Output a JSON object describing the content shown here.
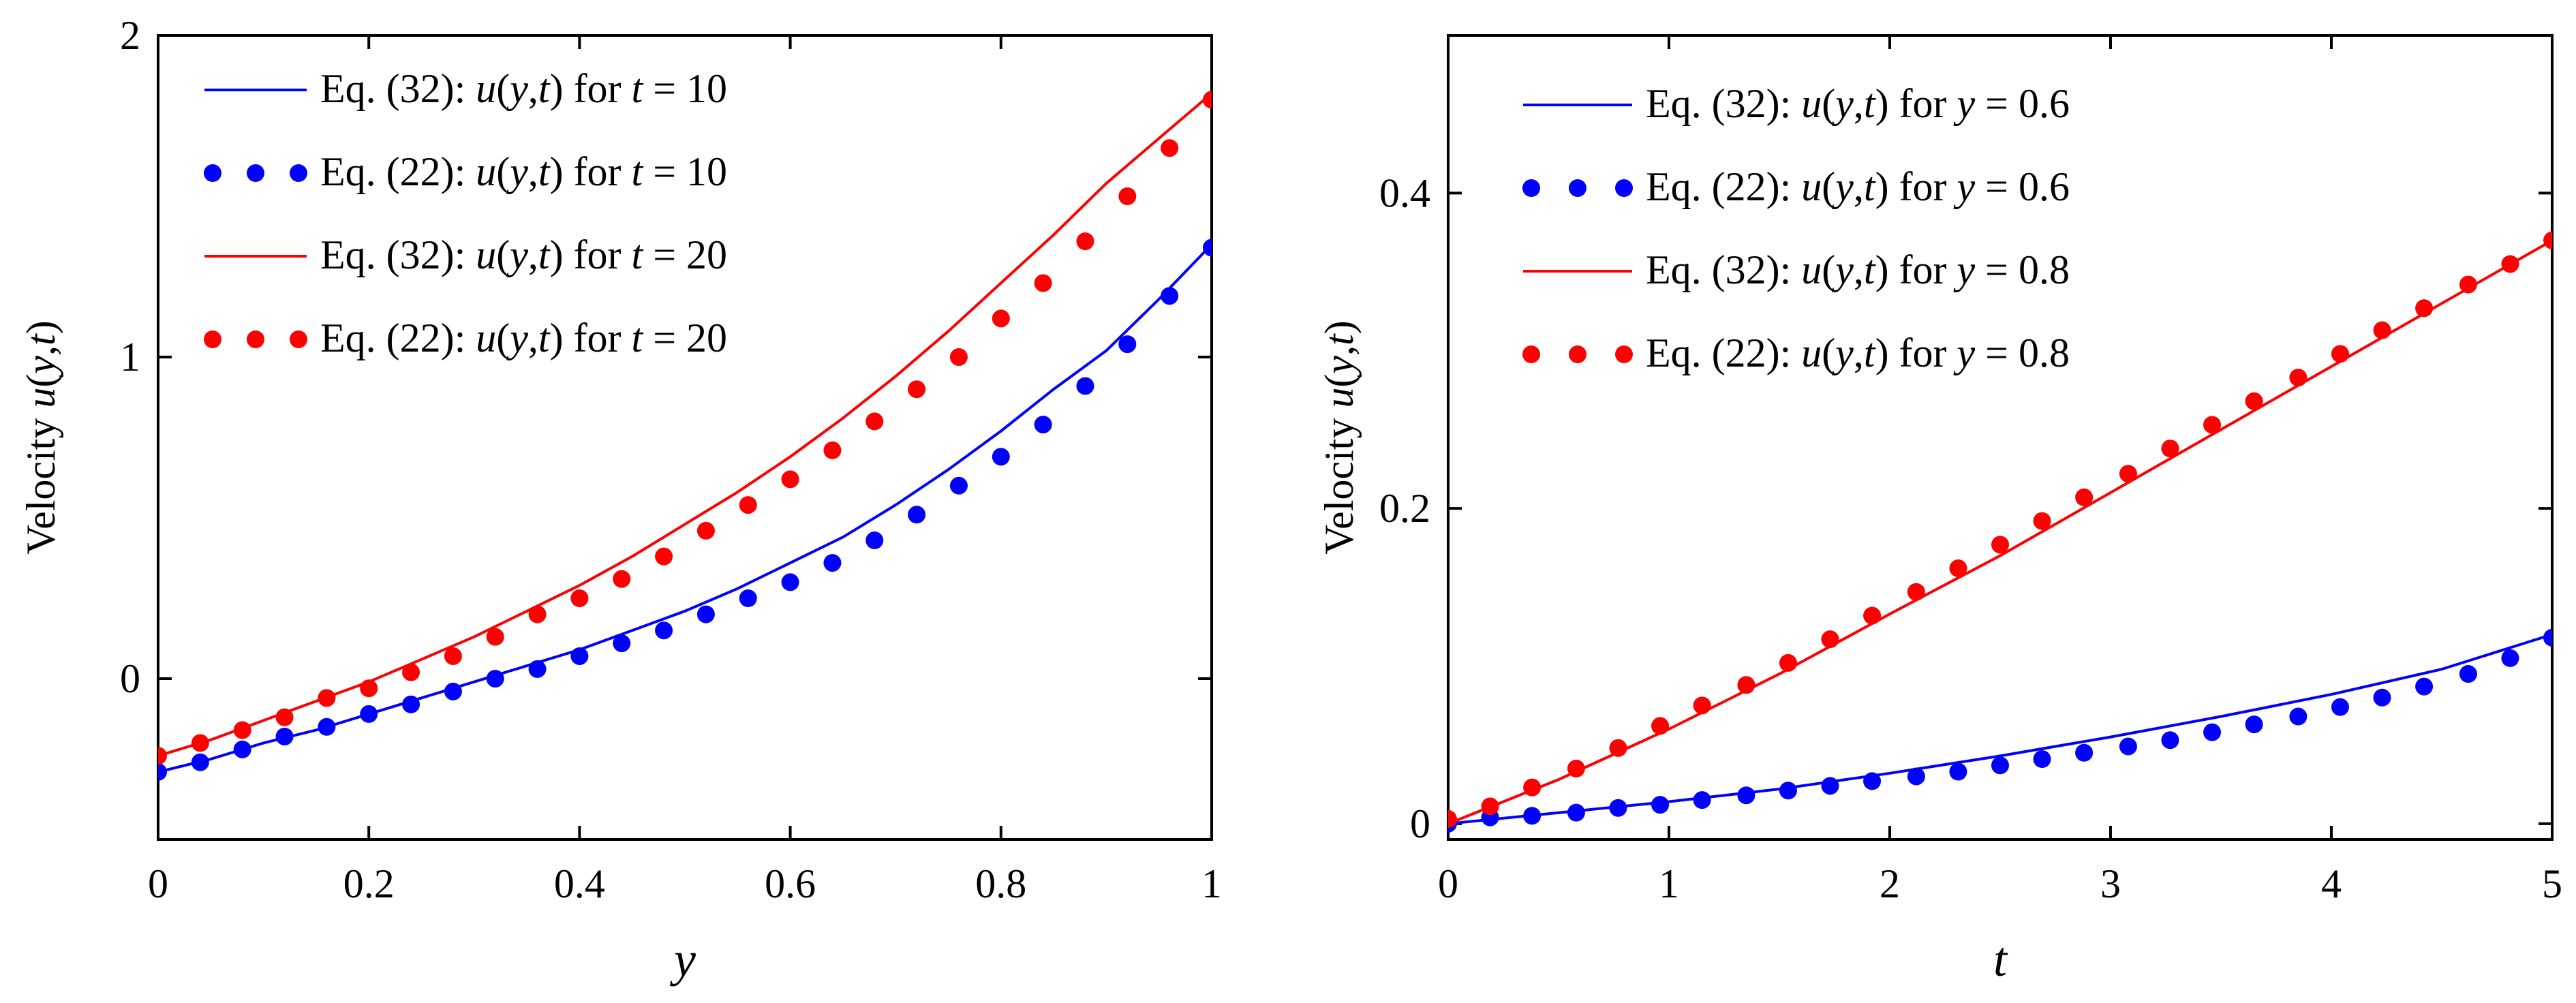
{
  "chart_data": [
    {
      "type": "line",
      "xlabel": "y",
      "ylabel": {
        "prefix": "Velocity ",
        "func": "u",
        "open": "(",
        "var1": "y",
        "comma": ",",
        "var2": "t",
        "close": ")"
      },
      "xlim": [
        0,
        1
      ],
      "ylim": [
        -0.5,
        2
      ],
      "xticks": [
        {
          "v": 0,
          "label": "0"
        },
        {
          "v": 0.2,
          "label": "0.2"
        },
        {
          "v": 0.4,
          "label": "0.4"
        },
        {
          "v": 0.6,
          "label": "0.6"
        },
        {
          "v": 0.8,
          "label": "0.8"
        },
        {
          "v": 1,
          "label": "1"
        }
      ],
      "yticks": [
        {
          "v": 0,
          "label": "0"
        },
        {
          "v": 1,
          "label": "1"
        },
        {
          "v": 2,
          "label": "2"
        }
      ],
      "legend_position": "top-left",
      "series": [
        {
          "key": "eq32_t10",
          "style": "line",
          "color": "#0000ff",
          "legend": {
            "eq": "Eq. (32):",
            "func": "u",
            "open": "(",
            "a": "y",
            "comma": ",",
            "b": "t",
            "close": ")",
            "for": " for ",
            "param": "t",
            "rel": " = ",
            "val": "10"
          },
          "x": [
            0,
            0.05,
            0.1,
            0.15,
            0.2,
            0.25,
            0.3,
            0.35,
            0.4,
            0.45,
            0.5,
            0.55,
            0.6,
            0.65,
            0.7,
            0.75,
            0.8,
            0.85,
            0.9,
            0.95,
            1
          ],
          "y": [
            -0.29,
            -0.25,
            -0.2,
            -0.16,
            -0.11,
            -0.06,
            -0.01,
            0.04,
            0.09,
            0.15,
            0.21,
            0.28,
            0.36,
            0.44,
            0.54,
            0.65,
            0.77,
            0.9,
            1.02,
            1.18,
            1.35
          ]
        },
        {
          "key": "eq22_t10",
          "style": "dots",
          "color": "#0000ff",
          "legend": {
            "eq": "Eq. (22):",
            "func": "u",
            "open": "(",
            "a": "y",
            "comma": ",",
            "b": "t",
            "close": ")",
            "for": " for ",
            "param": "t",
            "rel": " = ",
            "val": "10"
          },
          "x": [
            0,
            0.04,
            0.08,
            0.12,
            0.16,
            0.2,
            0.24,
            0.28,
            0.32,
            0.36,
            0.4,
            0.44,
            0.48,
            0.52,
            0.56,
            0.6,
            0.64,
            0.68,
            0.72,
            0.76,
            0.8,
            0.84,
            0.88,
            0.92,
            0.96,
            1
          ],
          "y": [
            -0.29,
            -0.26,
            -0.22,
            -0.18,
            -0.15,
            -0.11,
            -0.08,
            -0.04,
            0,
            0.03,
            0.07,
            0.11,
            0.15,
            0.2,
            0.25,
            0.3,
            0.36,
            0.43,
            0.51,
            0.6,
            0.69,
            0.79,
            0.91,
            1.04,
            1.19,
            1.34
          ]
        },
        {
          "key": "eq32_t20",
          "style": "line",
          "color": "#ff0000",
          "legend": {
            "eq": "Eq. (32):",
            "func": "u",
            "open": "(",
            "a": "y",
            "comma": ",",
            "b": "t",
            "close": ")",
            "for": " for ",
            "param": "t",
            "rel": " = ",
            "val": "20"
          },
          "x": [
            0,
            0.05,
            0.1,
            0.15,
            0.2,
            0.25,
            0.3,
            0.35,
            0.4,
            0.45,
            0.5,
            0.55,
            0.6,
            0.65,
            0.7,
            0.75,
            0.8,
            0.85,
            0.9,
            0.95,
            1
          ],
          "y": [
            -0.24,
            -0.19,
            -0.13,
            -0.07,
            -0.01,
            0.06,
            0.13,
            0.21,
            0.29,
            0.38,
            0.48,
            0.58,
            0.69,
            0.81,
            0.94,
            1.08,
            1.23,
            1.38,
            1.54,
            1.68,
            1.82
          ]
        },
        {
          "key": "eq22_t20",
          "style": "dots",
          "color": "#ff0000",
          "legend": {
            "eq": "Eq. (22):",
            "func": "u",
            "open": "(",
            "a": "y",
            "comma": ",",
            "b": "t",
            "close": ")",
            "for": " for ",
            "param": "t",
            "rel": " = ",
            "val": "20"
          },
          "x": [
            0,
            0.04,
            0.08,
            0.12,
            0.16,
            0.2,
            0.24,
            0.28,
            0.32,
            0.36,
            0.4,
            0.44,
            0.48,
            0.52,
            0.56,
            0.6,
            0.64,
            0.68,
            0.72,
            0.76,
            0.8,
            0.84,
            0.88,
            0.92,
            0.96,
            1
          ],
          "y": [
            -0.24,
            -0.2,
            -0.16,
            -0.12,
            -0.06,
            -0.03,
            0.02,
            0.07,
            0.13,
            0.2,
            0.25,
            0.31,
            0.38,
            0.46,
            0.54,
            0.62,
            0.71,
            0.8,
            0.9,
            1.0,
            1.12,
            1.23,
            1.36,
            1.5,
            1.65,
            1.8
          ]
        }
      ]
    },
    {
      "type": "line",
      "xlabel": "t",
      "ylabel": {
        "prefix": "Velocity ",
        "func": "u",
        "open": "(",
        "var1": "y",
        "comma": ",",
        "var2": "t",
        "close": ")"
      },
      "xlim": [
        0,
        5
      ],
      "ylim": [
        -0.01,
        0.5
      ],
      "xticks": [
        {
          "v": 0,
          "label": "0"
        },
        {
          "v": 1,
          "label": "1"
        },
        {
          "v": 2,
          "label": "2"
        },
        {
          "v": 3,
          "label": "3"
        },
        {
          "v": 4,
          "label": "4"
        },
        {
          "v": 5,
          "label": "5"
        }
      ],
      "yticks": [
        {
          "v": 0,
          "label": "0"
        },
        {
          "v": 0.2,
          "label": "0.2"
        },
        {
          "v": 0.4,
          "label": "0.4"
        }
      ],
      "legend_position": "top-left",
      "series": [
        {
          "key": "eq32_y06",
          "style": "line",
          "color": "#0000ff",
          "legend": {
            "eq": "Eq. (32):",
            "func": "u",
            "open": "(",
            "a": "y",
            "comma": ",",
            "b": "t",
            "close": ")",
            "for": " for ",
            "param": "y",
            "rel": " = ",
            "val": "0.6"
          },
          "x": [
            0,
            0.5,
            1,
            1.5,
            2,
            2.5,
            3,
            3.5,
            4,
            4.5,
            5
          ],
          "y": [
            0,
            0.007,
            0.014,
            0.022,
            0.032,
            0.043,
            0.055,
            0.068,
            0.082,
            0.098,
            0.12
          ]
        },
        {
          "key": "eq22_y06",
          "style": "dots",
          "color": "#0000ff",
          "legend": {
            "eq": "Eq. (22):",
            "func": "u",
            "open": "(",
            "a": "y",
            "comma": ",",
            "b": "t",
            "close": ")",
            "for": " for ",
            "param": "y",
            "rel": " = ",
            "val": "0.6"
          },
          "x": [
            0,
            0.19,
            0.38,
            0.58,
            0.77,
            0.96,
            1.15,
            1.35,
            1.54,
            1.73,
            1.92,
            2.12,
            2.31,
            2.5,
            2.69,
            2.88,
            3.08,
            3.27,
            3.46,
            3.65,
            3.85,
            4.04,
            4.23,
            4.42,
            4.62,
            4.81,
            5
          ],
          "y": [
            0.0,
            0.004,
            0.005,
            0.007,
            0.01,
            0.012,
            0.015,
            0.018,
            0.021,
            0.024,
            0.027,
            0.03,
            0.033,
            0.037,
            0.041,
            0.045,
            0.049,
            0.053,
            0.058,
            0.063,
            0.068,
            0.074,
            0.08,
            0.087,
            0.095,
            0.105,
            0.118
          ]
        },
        {
          "key": "eq32_y08",
          "style": "line",
          "color": "#ff0000",
          "legend": {
            "eq": "Eq. (32):",
            "func": "u",
            "open": "(",
            "a": "y",
            "comma": ",",
            "b": "t",
            "close": ")",
            "for": " for ",
            "param": "y",
            "rel": " = ",
            "val": "0.8"
          },
          "x": [
            0,
            0.5,
            1,
            1.5,
            2,
            2.5,
            3,
            3.5,
            4,
            4.5,
            5
          ],
          "y": [
            0,
            0.028,
            0.06,
            0.095,
            0.133,
            0.17,
            0.21,
            0.25,
            0.29,
            0.33,
            0.37
          ]
        },
        {
          "key": "eq22_y08",
          "style": "dots",
          "color": "#ff0000",
          "legend": {
            "eq": "Eq. (22):",
            "func": "u",
            "open": "(",
            "a": "y",
            "comma": ",",
            "b": "t",
            "close": ")",
            "for": " for ",
            "param": "y",
            "rel": " = ",
            "val": "0.8"
          },
          "x": [
            0,
            0.19,
            0.38,
            0.58,
            0.77,
            0.96,
            1.15,
            1.35,
            1.54,
            1.73,
            1.92,
            2.12,
            2.31,
            2.5,
            2.69,
            2.88,
            3.08,
            3.27,
            3.46,
            3.65,
            3.85,
            4.04,
            4.23,
            4.42,
            4.62,
            4.81,
            5
          ],
          "y": [
            0.003,
            0.011,
            0.023,
            0.035,
            0.048,
            0.062,
            0.075,
            0.088,
            0.102,
            0.117,
            0.132,
            0.147,
            0.162,
            0.177,
            0.192,
            0.207,
            0.222,
            0.238,
            0.253,
            0.268,
            0.283,
            0.298,
            0.313,
            0.327,
            0.342,
            0.355,
            0.37
          ]
        }
      ]
    }
  ]
}
